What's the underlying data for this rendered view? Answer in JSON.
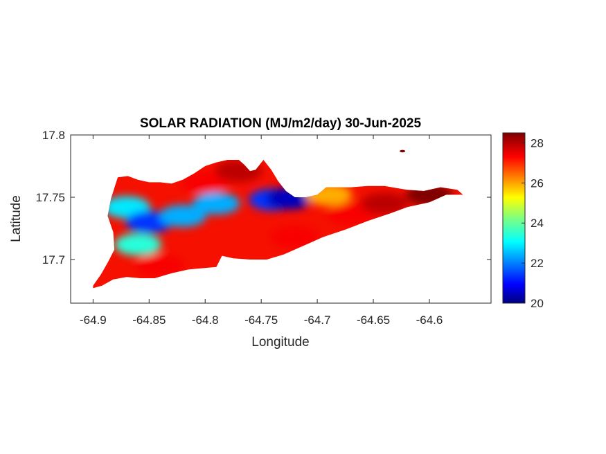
{
  "chart_data": {
    "type": "heatmap",
    "title": "SOLAR RADIATION (MJ/m2/day) 30-Jun-2025",
    "xlabel": "Longitude",
    "ylabel": "Latitude",
    "xlim": [
      -64.92,
      -64.545
    ],
    "ylim": [
      17.665,
      17.8
    ],
    "x_ticks": [
      -64.9,
      -64.85,
      -64.8,
      -64.75,
      -64.7,
      -64.65,
      -64.6
    ],
    "x_tick_labels": [
      "-64.9",
      "-64.85",
      "-64.8",
      "-64.75",
      "-64.7",
      "-64.65",
      "-64.6"
    ],
    "y_ticks": [
      17.7,
      17.75,
      17.8
    ],
    "y_tick_labels": [
      "17.7",
      "17.75",
      "17.8"
    ],
    "colorbar": {
      "colormap": "jet",
      "range": [
        20,
        28.5
      ],
      "ticks": [
        20,
        22,
        24,
        26,
        28
      ],
      "tick_labels": [
        "20",
        "22",
        "24",
        "26",
        "28"
      ]
    },
    "grid": false,
    "island_outline": [
      [
        -64.9,
        17.679
      ],
      [
        -64.893,
        17.688
      ],
      [
        -64.886,
        17.699
      ],
      [
        -64.881,
        17.708
      ],
      [
        -64.882,
        17.722
      ],
      [
        -64.887,
        17.735
      ],
      [
        -64.884,
        17.749
      ],
      [
        -64.878,
        17.766
      ],
      [
        -64.869,
        17.767
      ],
      [
        -64.86,
        17.764
      ],
      [
        -64.85,
        17.762
      ],
      [
        -64.84,
        17.762
      ],
      [
        -64.83,
        17.761
      ],
      [
        -64.82,
        17.764
      ],
      [
        -64.81,
        17.769
      ],
      [
        -64.8,
        17.775
      ],
      [
        -64.79,
        17.778
      ],
      [
        -64.78,
        17.78
      ],
      [
        -64.77,
        17.78
      ],
      [
        -64.765,
        17.776
      ],
      [
        -64.76,
        17.771
      ],
      [
        -64.755,
        17.772
      ],
      [
        -64.748,
        17.78
      ],
      [
        -64.741,
        17.772
      ],
      [
        -64.735,
        17.763
      ],
      [
        -64.728,
        17.755
      ],
      [
        -64.72,
        17.75
      ],
      [
        -64.71,
        17.75
      ],
      [
        -64.7,
        17.752
      ],
      [
        -64.692,
        17.758
      ],
      [
        -64.68,
        17.758
      ],
      [
        -64.67,
        17.758
      ],
      [
        -64.655,
        17.759
      ],
      [
        -64.64,
        17.759
      ],
      [
        -64.62,
        17.756
      ],
      [
        -64.605,
        17.755
      ],
      [
        -64.59,
        17.758
      ],
      [
        -64.575,
        17.756
      ],
      [
        -64.57,
        17.752
      ],
      [
        -64.585,
        17.752
      ],
      [
        -64.6,
        17.746
      ],
      [
        -64.62,
        17.742
      ],
      [
        -64.635,
        17.737
      ],
      [
        -64.655,
        17.731
      ],
      [
        -64.675,
        17.724
      ],
      [
        -64.695,
        17.718
      ],
      [
        -64.715,
        17.71
      ],
      [
        -64.73,
        17.704
      ],
      [
        -64.745,
        17.7
      ],
      [
        -64.76,
        17.7
      ],
      [
        -64.775,
        17.701
      ],
      [
        -64.785,
        17.703
      ],
      [
        -64.79,
        17.694
      ],
      [
        -64.803,
        17.693
      ],
      [
        -64.815,
        17.692
      ],
      [
        -64.83,
        17.689
      ],
      [
        -64.845,
        17.685
      ],
      [
        -64.858,
        17.685
      ],
      [
        -64.87,
        17.686
      ],
      [
        -64.882,
        17.684
      ],
      [
        -64.892,
        17.679
      ],
      [
        -64.9,
        17.677
      ]
    ],
    "field_hotspots": [
      {
        "x": -64.87,
        "y": 17.742,
        "value": 23
      },
      {
        "x": -64.85,
        "y": 17.73,
        "value": 21.5
      },
      {
        "x": -64.82,
        "y": 17.735,
        "value": 22.5
      },
      {
        "x": -64.79,
        "y": 17.745,
        "value": 22.5
      },
      {
        "x": -64.74,
        "y": 17.748,
        "value": 21.5
      },
      {
        "x": -64.725,
        "y": 17.749,
        "value": 20.5
      },
      {
        "x": -64.86,
        "y": 17.712,
        "value": 23.5
      },
      {
        "x": -64.8,
        "y": 17.762,
        "value": 27.5
      },
      {
        "x": -64.77,
        "y": 17.771,
        "value": 28
      },
      {
        "x": -64.84,
        "y": 17.695,
        "value": 27.5
      },
      {
        "x": -64.72,
        "y": 17.718,
        "value": 27.5
      },
      {
        "x": -64.67,
        "y": 17.737,
        "value": 27.5
      },
      {
        "x": -64.64,
        "y": 17.745,
        "value": 28
      },
      {
        "x": -64.6,
        "y": 17.752,
        "value": 28.5
      },
      {
        "x": -64.69,
        "y": 17.752,
        "value": 26
      }
    ],
    "islet": {
      "x": -64.624,
      "y": 17.787,
      "value": 28.5
    }
  }
}
